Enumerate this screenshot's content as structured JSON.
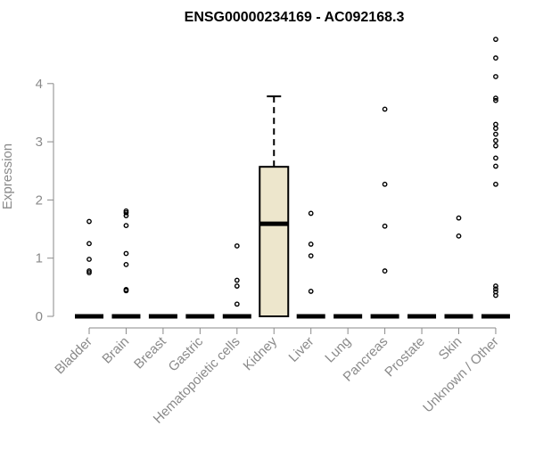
{
  "chart_data": {
    "type": "box",
    "title": "ENSG00000234169 - AC092168.3",
    "xlabel": "",
    "ylabel": "Expression",
    "ylim": [
      0,
      4.8
    ],
    "yticks": [
      0,
      1,
      2,
      3,
      4
    ],
    "categories": [
      "Bladder",
      "Brain",
      "Breast",
      "Gastric",
      "Hematopoietic cells",
      "Kidney",
      "Liver",
      "Lung",
      "Pancreas",
      "Prostate",
      "Skin",
      "Unknown / Other"
    ],
    "boxes": [
      {
        "category": "Bladder",
        "whisker_low": 0,
        "q1": 0,
        "median": 0,
        "q3": 0,
        "whisker_high": 0,
        "outliers": [
          0.75,
          0.78,
          0.98,
          1.25,
          1.63
        ]
      },
      {
        "category": "Brain",
        "whisker_low": 0,
        "q1": 0,
        "median": 0,
        "q3": 0,
        "whisker_high": 0,
        "outliers": [
          0.44,
          0.46,
          0.89,
          1.08,
          1.56,
          1.73,
          1.78,
          1.81
        ]
      },
      {
        "category": "Breast",
        "whisker_low": 0,
        "q1": 0,
        "median": 0,
        "q3": 0,
        "whisker_high": 0,
        "outliers": []
      },
      {
        "category": "Gastric",
        "whisker_low": 0,
        "q1": 0,
        "median": 0,
        "q3": 0,
        "whisker_high": 0,
        "outliers": []
      },
      {
        "category": "Hematopoietic cells",
        "whisker_low": 0,
        "q1": 0,
        "median": 0,
        "q3": 0,
        "whisker_high": 0,
        "outliers": [
          0.21,
          0.52,
          0.62,
          1.21
        ]
      },
      {
        "category": "Kidney",
        "whisker_low": 0,
        "q1": 0,
        "median": 1.59,
        "q3": 2.57,
        "whisker_high": 3.78,
        "outliers": []
      },
      {
        "category": "Liver",
        "whisker_low": 0,
        "q1": 0,
        "median": 0,
        "q3": 0,
        "whisker_high": 0,
        "outliers": [
          0.43,
          1.04,
          1.24,
          1.77
        ]
      },
      {
        "category": "Lung",
        "whisker_low": 0,
        "q1": 0,
        "median": 0,
        "q3": 0,
        "whisker_high": 0,
        "outliers": []
      },
      {
        "category": "Pancreas",
        "whisker_low": 0,
        "q1": 0,
        "median": 0,
        "q3": 0,
        "whisker_high": 0,
        "outliers": [
          0.78,
          1.55,
          2.27,
          3.56
        ]
      },
      {
        "category": "Prostate",
        "whisker_low": 0,
        "q1": 0,
        "median": 0,
        "q3": 0,
        "whisker_high": 0,
        "outliers": []
      },
      {
        "category": "Skin",
        "whisker_low": 0,
        "q1": 0,
        "median": 0,
        "q3": 0,
        "whisker_high": 0,
        "outliers": [
          1.38,
          1.69
        ]
      },
      {
        "category": "Unknown / Other",
        "whisker_low": 0,
        "q1": 0,
        "median": 0,
        "q3": 0,
        "whisker_high": 0,
        "outliers": [
          0.36,
          0.42,
          0.47,
          0.52,
          2.27,
          2.58,
          2.72,
          2.93,
          3.02,
          3.13,
          3.23,
          3.3,
          3.71,
          3.75,
          4.12,
          4.44,
          4.76
        ]
      }
    ],
    "box_fill": "#ede6cc",
    "grid": false,
    "legend": "none"
  }
}
